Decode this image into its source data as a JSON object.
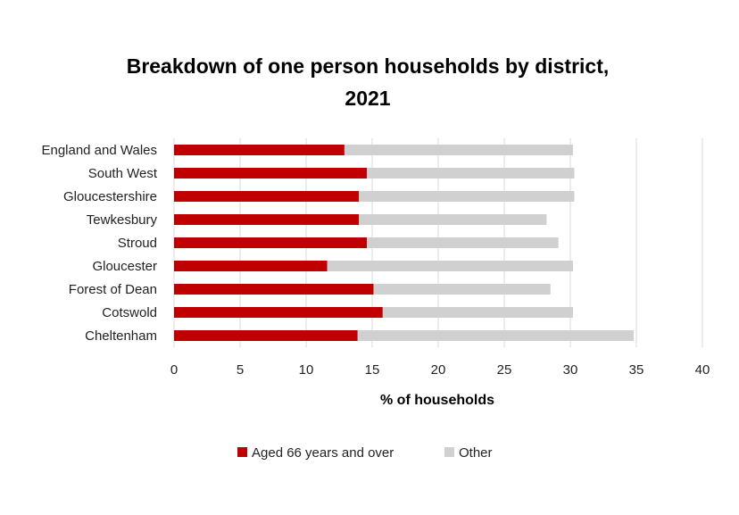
{
  "chart_data": {
    "type": "bar",
    "orientation": "horizontal",
    "stacked": true,
    "title_line1": "Breakdown of one person households by district,",
    "title_line2": "2021",
    "xlabel": "% of households",
    "ylabel": "",
    "xlim": [
      0,
      40
    ],
    "xticks": [
      "0",
      "5",
      "10",
      "15",
      "20",
      "25",
      "30",
      "35",
      "40"
    ],
    "xtick_values": [
      0,
      5,
      10,
      15,
      20,
      25,
      30,
      35,
      40
    ],
    "grid": true,
    "legend_position": "bottom",
    "categories": [
      "England and Wales",
      "South West",
      "Gloucestershire",
      "Tewkesbury",
      "Stroud",
      "Gloucester",
      "Forest of Dean ",
      "Cotswold",
      "Cheltenham"
    ],
    "series": [
      {
        "name": "Aged 66 years and over",
        "color": "#c00000",
        "values": [
          12.9,
          14.6,
          14.0,
          14.0,
          14.6,
          11.6,
          15.1,
          15.8,
          13.9
        ]
      },
      {
        "name": "Other",
        "color": "#d0d0d0",
        "values": [
          17.3,
          15.7,
          16.3,
          14.2,
          14.5,
          18.6,
          13.4,
          14.4,
          20.9
        ]
      }
    ]
  }
}
